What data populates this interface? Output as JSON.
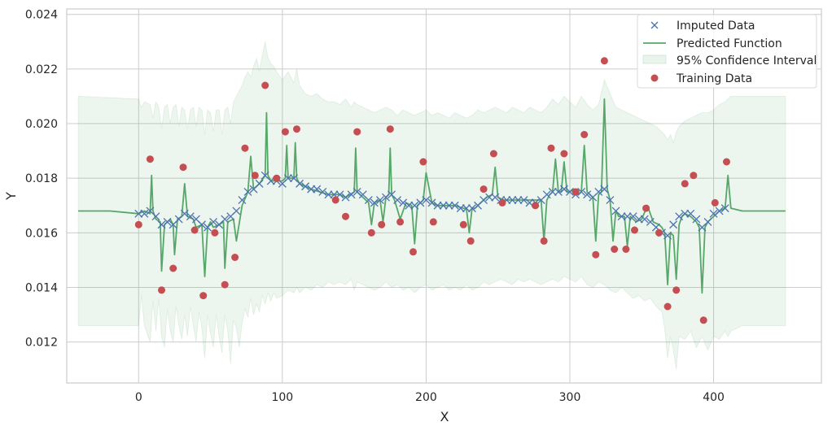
{
  "chart_data": {
    "type": "scatter",
    "title": "",
    "xlabel": "X",
    "ylabel": "Y",
    "xlim": [
      -50,
      475
    ],
    "ylim": [
      0.0105,
      0.0242
    ],
    "x_ticks": [
      0,
      100,
      200,
      300,
      400
    ],
    "y_ticks": [
      0.012,
      0.014,
      0.016,
      0.018,
      0.02,
      0.022,
      0.024
    ],
    "x_tick_labels": [
      "0",
      "100",
      "200",
      "300",
      "400"
    ],
    "y_tick_labels": [
      "0.012",
      "0.014",
      "0.016",
      "0.018",
      "0.020",
      "0.022",
      "0.024"
    ],
    "grid": true,
    "legend_position": "top-right",
    "colors": {
      "imputed": "#4c72b0",
      "predicted": "#55a868",
      "confidence": "#55a868",
      "training": "#c44e52",
      "grid": "#cccccc",
      "axes": "#cccccc"
    },
    "series": [
      {
        "name": "Imputed Data",
        "kind": "marker-x",
        "x": [
          0,
          4,
          8,
          12,
          16,
          20,
          24,
          28,
          32,
          36,
          40,
          44,
          48,
          52,
          56,
          60,
          64,
          68,
          72,
          76,
          80,
          84,
          88,
          92,
          96,
          100,
          104,
          108,
          112,
          116,
          120,
          124,
          128,
          132,
          136,
          140,
          144,
          148,
          152,
          156,
          160,
          164,
          168,
          172,
          176,
          180,
          184,
          188,
          192,
          196,
          200,
          204,
          208,
          212,
          216,
          220,
          224,
          228,
          232,
          236,
          240,
          244,
          248,
          252,
          256,
          260,
          264,
          268,
          272,
          276,
          280,
          284,
          288,
          292,
          296,
          300,
          304,
          308,
          312,
          316,
          320,
          324,
          328,
          332,
          336,
          340,
          344,
          348,
          352,
          356,
          360,
          364,
          368,
          372,
          376,
          380,
          384,
          388,
          392,
          396,
          400,
          404,
          408
        ],
        "y": [
          0.0167,
          0.0167,
          0.0168,
          0.0166,
          0.0163,
          0.0164,
          0.0163,
          0.0165,
          0.0167,
          0.0166,
          0.0165,
          0.0163,
          0.0162,
          0.0164,
          0.0163,
          0.0165,
          0.0166,
          0.0168,
          0.0172,
          0.0175,
          0.0176,
          0.0178,
          0.0181,
          0.0179,
          0.0179,
          0.0178,
          0.018,
          0.018,
          0.0178,
          0.0177,
          0.0176,
          0.0176,
          0.0175,
          0.0174,
          0.0174,
          0.0174,
          0.0173,
          0.0174,
          0.0175,
          0.0174,
          0.0172,
          0.0171,
          0.0172,
          0.0173,
          0.0174,
          0.0172,
          0.0171,
          0.017,
          0.017,
          0.0171,
          0.0172,
          0.0171,
          0.017,
          0.017,
          0.017,
          0.017,
          0.0169,
          0.0169,
          0.0169,
          0.017,
          0.0172,
          0.0173,
          0.0173,
          0.0172,
          0.0172,
          0.0172,
          0.0172,
          0.0172,
          0.0171,
          0.0171,
          0.0172,
          0.0174,
          0.0175,
          0.0175,
          0.0176,
          0.0175,
          0.0174,
          0.0175,
          0.0174,
          0.0173,
          0.0175,
          0.0176,
          0.0172,
          0.0168,
          0.0166,
          0.0166,
          0.0166,
          0.0165,
          0.0165,
          0.0164,
          0.0162,
          0.016,
          0.0159,
          0.0163,
          0.0166,
          0.0167,
          0.0167,
          0.0165,
          0.0162,
          0.0164,
          0.0167,
          0.0168,
          0.0169
        ]
      },
      {
        "name": "Predicted Function",
        "kind": "line",
        "x": [
          -42,
          -20,
          0,
          4,
          8,
          9,
          10,
          12,
          15,
          16,
          18,
          22,
          24,
          25,
          27,
          30,
          32,
          34,
          38,
          40,
          44,
          46,
          48,
          50,
          52,
          56,
          59,
          60,
          62,
          66,
          68,
          72,
          76,
          78,
          80,
          84,
          88,
          89,
          90,
          92,
          96,
          100,
          102,
          103,
          104,
          106,
          108,
          109,
          110,
          112,
          116,
          120,
          126,
          132,
          140,
          144,
          150,
          151,
          152,
          154,
          158,
          160,
          162,
          164,
          168,
          170,
          172,
          174,
          175,
          176,
          178,
          182,
          186,
          190,
          192,
          194,
          198,
          200,
          204,
          208,
          212,
          220,
          226,
          228,
          230,
          232,
          234,
          238,
          242,
          246,
          248,
          250,
          254,
          260,
          268,
          276,
          280,
          282,
          284,
          286,
          288,
          290,
          292,
          294,
          296,
          298,
          300,
          302,
          304,
          306,
          308,
          310,
          312,
          314,
          316,
          318,
          320,
          322,
          324,
          326,
          328,
          330,
          332,
          334,
          336,
          338,
          340,
          342,
          344,
          346,
          350,
          354,
          358,
          362,
          364,
          366,
          368,
          370,
          372,
          374,
          376,
          378,
          380,
          384,
          388,
          390,
          392,
          394,
          396,
          400,
          404,
          408,
          410,
          412,
          420,
          450
        ],
        "y": [
          0.0168,
          0.0168,
          0.0167,
          0.0168,
          0.0167,
          0.0181,
          0.0168,
          0.0165,
          0.0164,
          0.0146,
          0.0163,
          0.0165,
          0.0163,
          0.0152,
          0.0165,
          0.0166,
          0.0178,
          0.0166,
          0.0165,
          0.0162,
          0.0163,
          0.0144,
          0.0162,
          0.0164,
          0.0162,
          0.0163,
          0.0164,
          0.0147,
          0.0164,
          0.0165,
          0.0157,
          0.017,
          0.0175,
          0.0188,
          0.0176,
          0.0178,
          0.0181,
          0.0204,
          0.0181,
          0.0179,
          0.0179,
          0.0179,
          0.018,
          0.0192,
          0.018,
          0.018,
          0.018,
          0.0193,
          0.018,
          0.0178,
          0.0177,
          0.0176,
          0.0175,
          0.0174,
          0.0174,
          0.0173,
          0.0175,
          0.0191,
          0.0175,
          0.0174,
          0.0172,
          0.0171,
          0.0163,
          0.0171,
          0.0172,
          0.0164,
          0.0173,
          0.0174,
          0.0191,
          0.0174,
          0.0172,
          0.0165,
          0.0171,
          0.017,
          0.0156,
          0.017,
          0.0172,
          0.0182,
          0.0171,
          0.017,
          0.017,
          0.017,
          0.0169,
          0.0169,
          0.016,
          0.0169,
          0.0169,
          0.0171,
          0.0173,
          0.0174,
          0.0184,
          0.0173,
          0.0172,
          0.0172,
          0.0172,
          0.0172,
          0.0172,
          0.0157,
          0.0172,
          0.0174,
          0.0175,
          0.0187,
          0.0175,
          0.0175,
          0.0186,
          0.0175,
          0.0175,
          0.0176,
          0.0175,
          0.0174,
          0.0175,
          0.0192,
          0.0175,
          0.0174,
          0.0173,
          0.0157,
          0.0174,
          0.0175,
          0.0209,
          0.0176,
          0.0172,
          0.0157,
          0.0168,
          0.0166,
          0.0166,
          0.0166,
          0.0155,
          0.0166,
          0.0165,
          0.0164,
          0.0165,
          0.017,
          0.0164,
          0.0163,
          0.0162,
          0.016,
          0.0141,
          0.016,
          0.0159,
          0.0143,
          0.0163,
          0.0166,
          0.0167,
          0.0166,
          0.0164,
          0.0162,
          0.0138,
          0.0162,
          0.0164,
          0.0166,
          0.0168,
          0.0169,
          0.0181,
          0.0169,
          0.0168,
          0.0168
        ]
      },
      {
        "name": "95% Confidence Interval",
        "kind": "band",
        "x": [
          -42,
          0,
          2,
          4,
          8,
          10,
          12,
          14,
          16,
          18,
          20,
          22,
          24,
          26,
          28,
          30,
          32,
          34,
          36,
          38,
          40,
          42,
          44,
          46,
          48,
          50,
          52,
          54,
          56,
          58,
          60,
          62,
          64,
          66,
          68,
          70,
          72,
          74,
          76,
          78,
          80,
          82,
          84,
          86,
          88,
          90,
          92,
          94,
          96,
          100,
          104,
          108,
          110,
          112,
          116,
          120,
          124,
          128,
          132,
          136,
          140,
          144,
          148,
          150,
          152,
          156,
          160,
          164,
          168,
          172,
          176,
          180,
          184,
          188,
          192,
          196,
          200,
          204,
          208,
          212,
          216,
          220,
          224,
          228,
          232,
          236,
          240,
          244,
          248,
          252,
          256,
          260,
          264,
          268,
          272,
          276,
          280,
          284,
          288,
          292,
          296,
          300,
          304,
          308,
          312,
          316,
          320,
          324,
          328,
          332,
          336,
          340,
          344,
          348,
          352,
          356,
          360,
          364,
          366,
          368,
          370,
          372,
          374,
          376,
          380,
          384,
          388,
          392,
          396,
          400,
          404,
          408,
          410,
          412,
          420,
          450
        ],
        "lower": [
          0.0126,
          0.0126,
          0.0137,
          0.0126,
          0.012,
          0.0135,
          0.0124,
          0.0136,
          0.0122,
          0.0118,
          0.0132,
          0.0124,
          0.012,
          0.0133,
          0.0126,
          0.0121,
          0.013,
          0.0122,
          0.0133,
          0.0126,
          0.012,
          0.0131,
          0.0125,
          0.0114,
          0.013,
          0.0123,
          0.0118,
          0.013,
          0.0122,
          0.0116,
          0.013,
          0.0124,
          0.0112,
          0.0128,
          0.0125,
          0.0118,
          0.0127,
          0.0132,
          0.0129,
          0.0136,
          0.013,
          0.0134,
          0.0131,
          0.0137,
          0.0134,
          0.0138,
          0.0135,
          0.0138,
          0.0136,
          0.0137,
          0.0139,
          0.0138,
          0.014,
          0.0138,
          0.014,
          0.0139,
          0.0141,
          0.014,
          0.0142,
          0.0141,
          0.0142,
          0.0141,
          0.0143,
          0.0139,
          0.0142,
          0.0141,
          0.014,
          0.0139,
          0.014,
          0.0142,
          0.014,
          0.0141,
          0.0139,
          0.014,
          0.0138,
          0.014,
          0.0141,
          0.0139,
          0.014,
          0.0141,
          0.0139,
          0.014,
          0.0139,
          0.0141,
          0.0139,
          0.014,
          0.0142,
          0.0141,
          0.0142,
          0.0143,
          0.0142,
          0.0141,
          0.0143,
          0.0142,
          0.0143,
          0.0142,
          0.0141,
          0.0142,
          0.0143,
          0.0142,
          0.0144,
          0.0143,
          0.0142,
          0.0144,
          0.0141,
          0.014,
          0.0142,
          0.0141,
          0.0139,
          0.0138,
          0.014,
          0.0138,
          0.0136,
          0.0137,
          0.0135,
          0.0136,
          0.0133,
          0.0131,
          0.0125,
          0.0114,
          0.0122,
          0.0117,
          0.011,
          0.0122,
          0.0121,
          0.0124,
          0.0118,
          0.0122,
          0.0117,
          0.0122,
          0.0121,
          0.0124,
          0.0122,
          0.0124,
          0.0126,
          0.0126
        ],
        "upper": [
          0.021,
          0.0209,
          0.0206,
          0.0208,
          0.0207,
          0.0202,
          0.0208,
          0.0206,
          0.0198,
          0.0206,
          0.0207,
          0.02,
          0.0206,
          0.0207,
          0.0199,
          0.0206,
          0.0205,
          0.0198,
          0.0205,
          0.0206,
          0.0199,
          0.0206,
          0.0205,
          0.0196,
          0.0205,
          0.0204,
          0.0197,
          0.0205,
          0.0205,
          0.0196,
          0.0205,
          0.0206,
          0.02,
          0.0208,
          0.021,
          0.0212,
          0.0214,
          0.0217,
          0.0219,
          0.0217,
          0.0221,
          0.0224,
          0.0219,
          0.0225,
          0.023,
          0.0224,
          0.0222,
          0.0221,
          0.0219,
          0.0216,
          0.0219,
          0.0215,
          0.022,
          0.0214,
          0.0211,
          0.021,
          0.0211,
          0.0209,
          0.0208,
          0.0208,
          0.0207,
          0.0209,
          0.0206,
          0.0208,
          0.0207,
          0.0206,
          0.0205,
          0.0204,
          0.0205,
          0.0206,
          0.0205,
          0.0203,
          0.0205,
          0.0204,
          0.0203,
          0.0204,
          0.0205,
          0.0203,
          0.0204,
          0.0203,
          0.0202,
          0.0204,
          0.0203,
          0.0202,
          0.0203,
          0.0205,
          0.0204,
          0.0205,
          0.0206,
          0.0205,
          0.0204,
          0.0206,
          0.0205,
          0.0204,
          0.0206,
          0.0205,
          0.0204,
          0.0206,
          0.0209,
          0.0207,
          0.021,
          0.0208,
          0.0206,
          0.021,
          0.0207,
          0.0205,
          0.0207,
          0.0216,
          0.0211,
          0.0206,
          0.0205,
          0.0204,
          0.0203,
          0.0202,
          0.0201,
          0.02,
          0.0199,
          0.0197,
          0.0196,
          0.0194,
          0.0196,
          0.0193,
          0.0197,
          0.0199,
          0.0201,
          0.0202,
          0.0203,
          0.0204,
          0.0204,
          0.0205,
          0.0207,
          0.0208,
          0.0209,
          0.021,
          0.021,
          0.021
        ]
      },
      {
        "name": "Training Data",
        "kind": "marker-dot",
        "x": [
          0,
          8,
          16,
          24,
          31,
          39,
          45,
          53,
          60,
          67,
          74,
          81,
          88,
          96,
          102,
          110,
          137,
          144,
          152,
          162,
          169,
          175,
          182,
          191,
          198,
          205,
          226,
          231,
          240,
          247,
          253,
          276,
          282,
          287,
          296,
          304,
          310,
          318,
          324,
          331,
          339,
          345,
          353,
          362,
          368,
          374,
          380,
          386,
          393,
          401,
          409
        ],
        "y": [
          0.0163,
          0.0187,
          0.0139,
          0.0147,
          0.0184,
          0.0161,
          0.0137,
          0.016,
          0.0141,
          0.0151,
          0.0191,
          0.0181,
          0.0214,
          0.018,
          0.0197,
          0.0198,
          0.0172,
          0.0166,
          0.0197,
          0.016,
          0.0163,
          0.0198,
          0.0164,
          0.0153,
          0.0186,
          0.0164,
          0.0163,
          0.0157,
          0.0176,
          0.0189,
          0.0171,
          0.017,
          0.0157,
          0.0191,
          0.0189,
          0.0175,
          0.0196,
          0.0152,
          0.0223,
          0.0154,
          0.0154,
          0.0161,
          0.0169,
          0.016,
          0.0133,
          0.0139,
          0.0178,
          0.0181,
          0.0128,
          0.0171,
          0.0186
        ]
      }
    ]
  }
}
